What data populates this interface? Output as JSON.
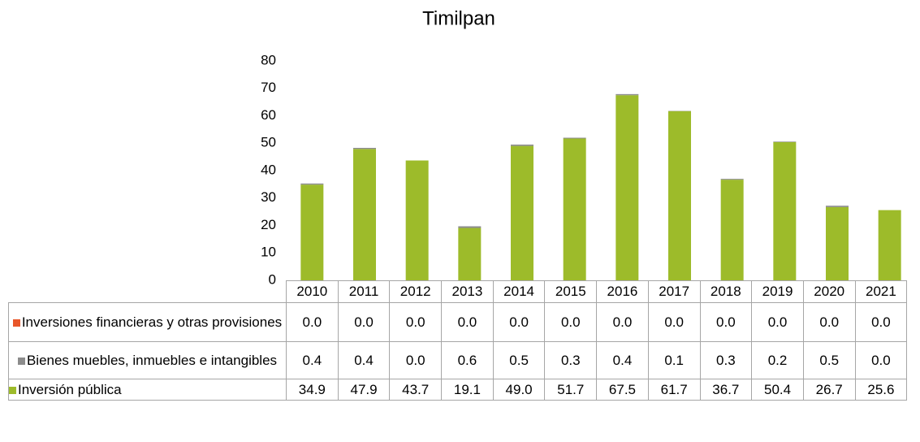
{
  "chart_data": {
    "type": "stacked_bar",
    "title": "Timilpan",
    "categories": [
      "2010",
      "2011",
      "2012",
      "2013",
      "2014",
      "2015",
      "2016",
      "2017",
      "2018",
      "2019",
      "2020",
      "2021"
    ],
    "series": [
      {
        "name": "Inversión pública",
        "color": "#9dbb2a",
        "values": [
          34.9,
          47.9,
          43.7,
          19.1,
          49.0,
          51.7,
          67.5,
          61.7,
          36.7,
          50.4,
          26.7,
          25.6
        ],
        "value_labels": [
          "34.9",
          "47.9",
          "43.7",
          "19.1",
          "49.0",
          "51.7",
          "67.5",
          "61.7",
          "36.7",
          "50.4",
          "26.7",
          "25.6"
        ]
      },
      {
        "name": "Bienes muebles, inmuebles e intangibles",
        "color": "#8c8c8c",
        "values": [
          0.4,
          0.4,
          0,
          0.6,
          0.5,
          0.3,
          0.4,
          0.1,
          0.3,
          0.2,
          0.5,
          0
        ],
        "value_labels": [
          "0.4",
          "0.4",
          "0.0",
          "0.6",
          "0.5",
          "0.3",
          "0.4",
          "0.1",
          "0.3",
          "0.2",
          "0.5",
          "0.0"
        ]
      },
      {
        "name": "Inversiones financieras y otras provisiones",
        "color": "#e8562a",
        "values": [
          0,
          0,
          0,
          0,
          0,
          0,
          0,
          0,
          0,
          0,
          0,
          0
        ],
        "value_labels": [
          "0.0",
          "0.0",
          "0.0",
          "0.0",
          "0.0",
          "0.0",
          "0.0",
          "0.0",
          "0.0",
          "0.0",
          "0.0",
          "0.0"
        ]
      }
    ],
    "ylim": [
      0,
      80
    ],
    "yticks": [
      0,
      10,
      20,
      30,
      40,
      50,
      60,
      70,
      80
    ],
    "grid": false
  }
}
